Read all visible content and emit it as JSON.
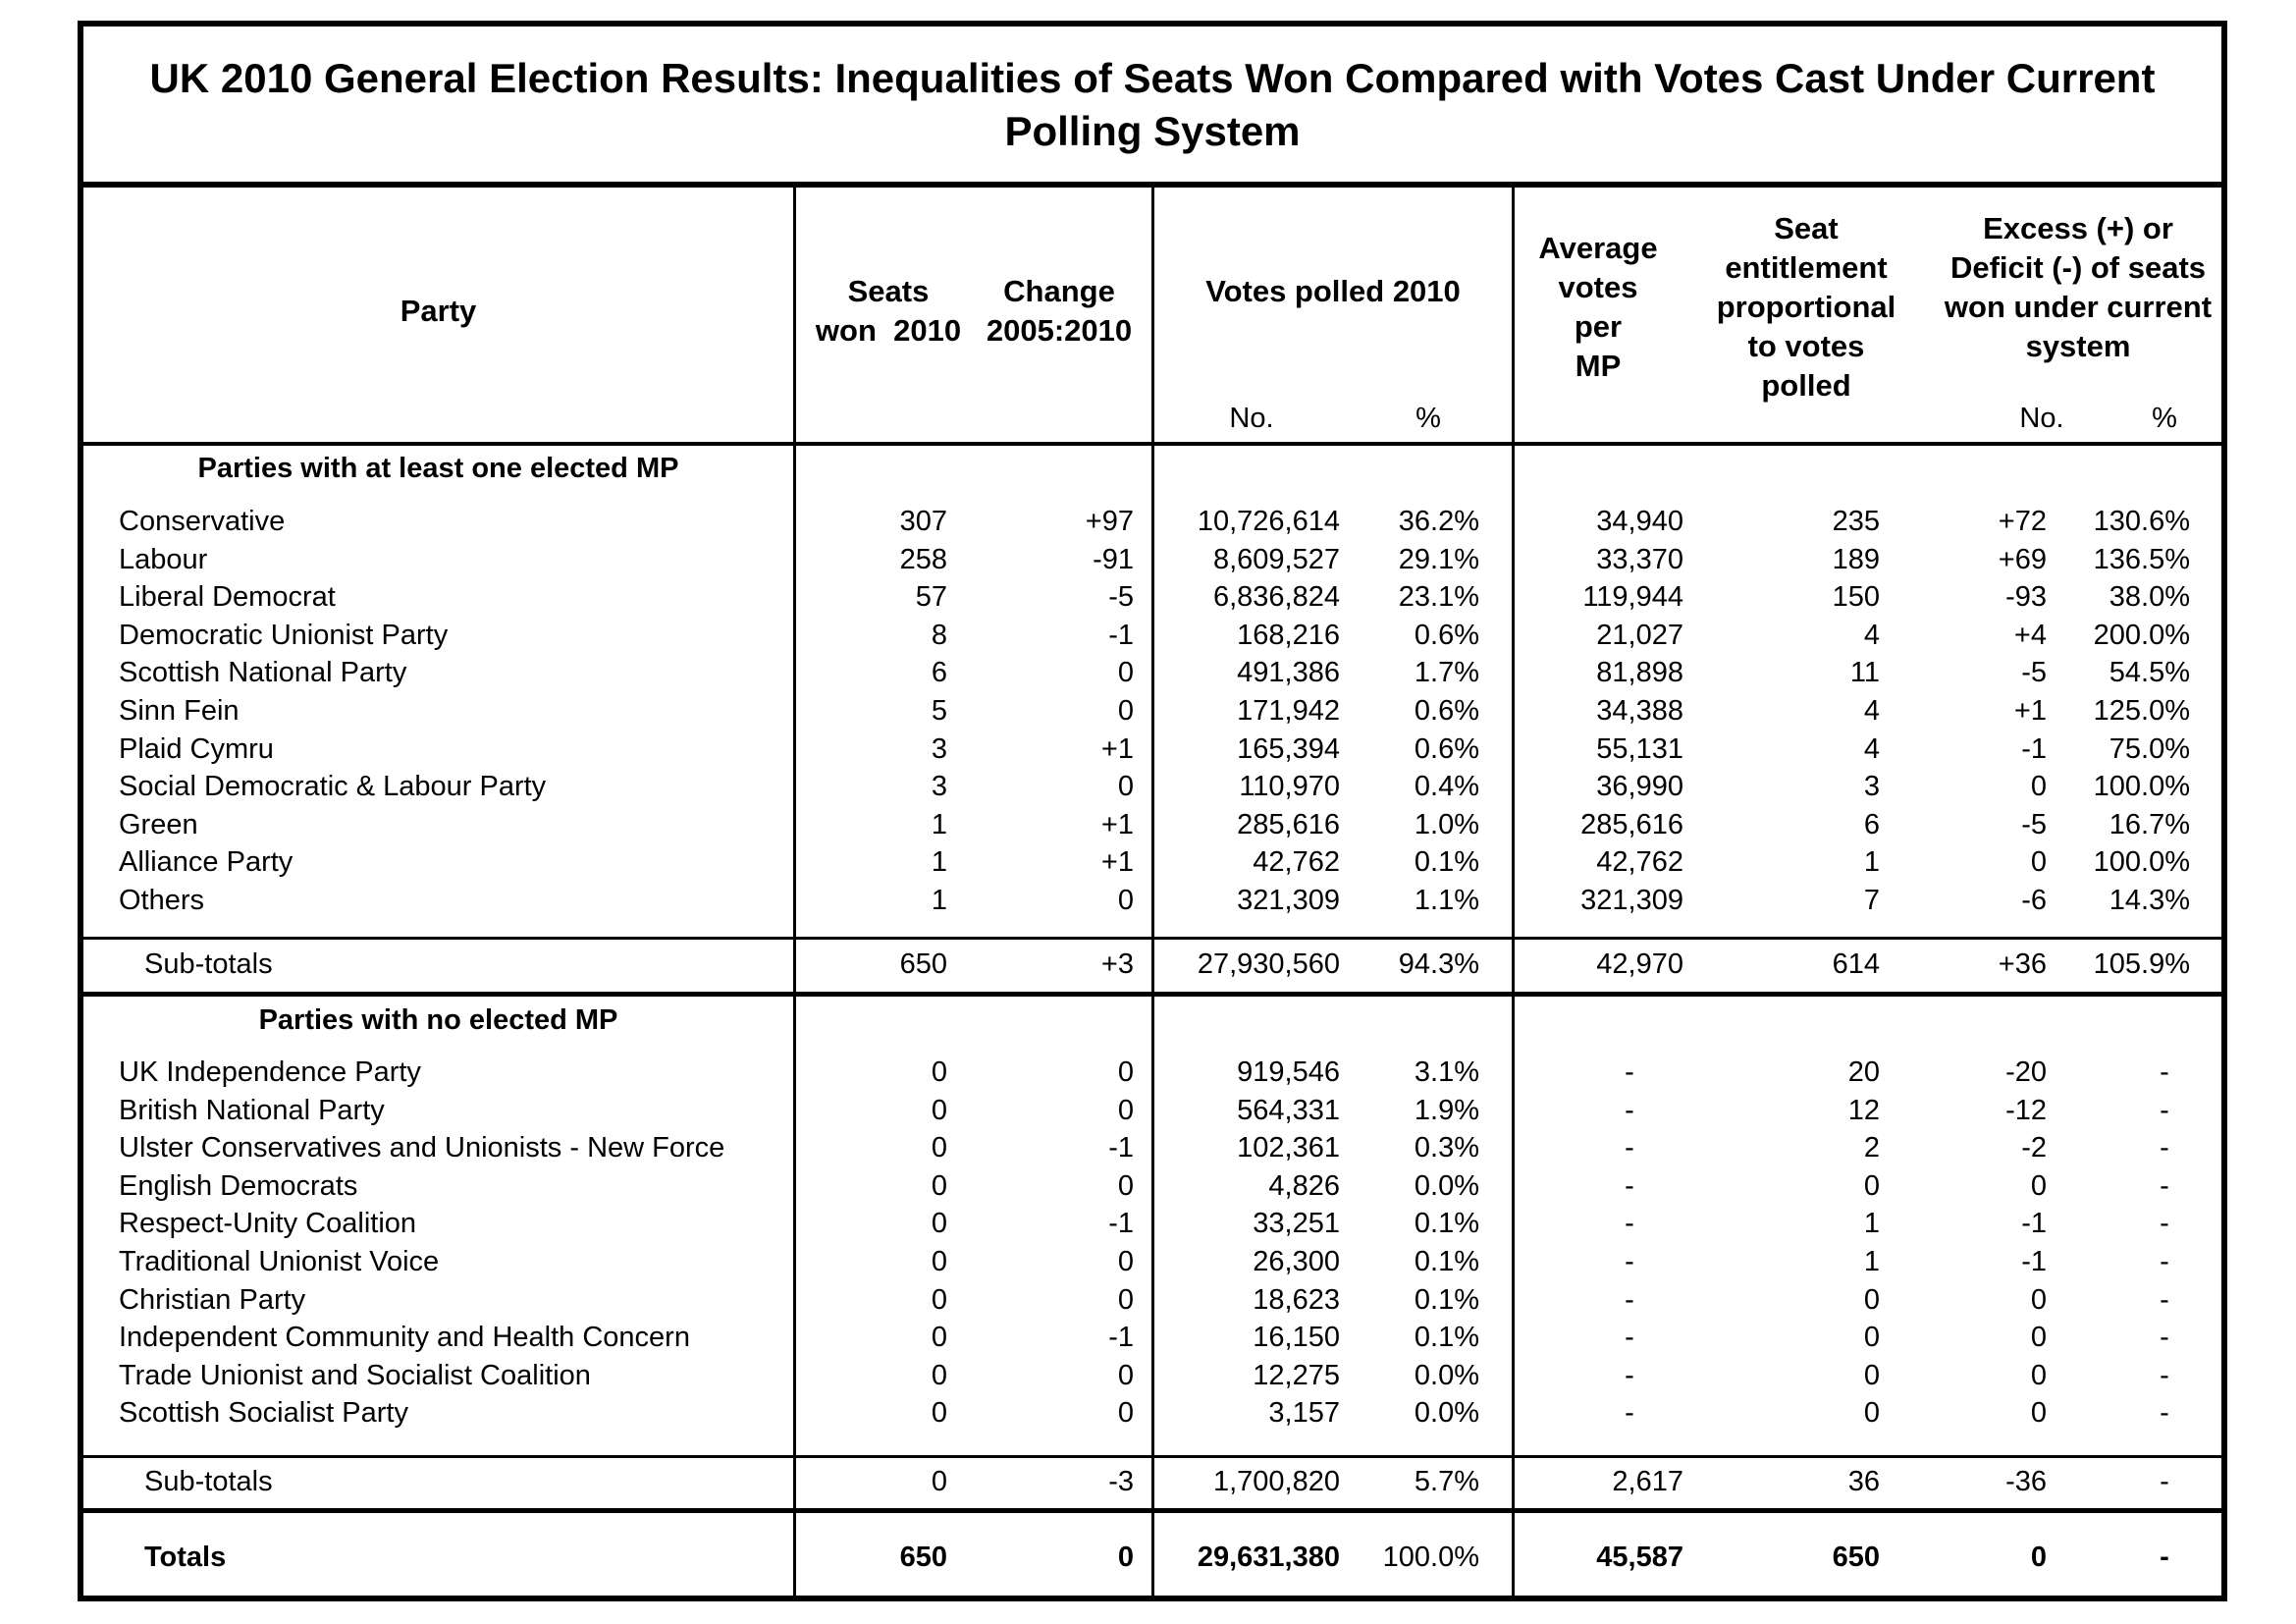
{
  "title": {
    "line1": "UK 2010 General Election Results: Inequalities of Seats Won Compared with Votes Cast Under Current",
    "line2": "Polling System"
  },
  "headers": {
    "party": "Party",
    "seats": [
      "Seats",
      "won  2010"
    ],
    "change": [
      "Change",
      "2005:2010"
    ],
    "votes": "Votes polled 2010",
    "votes_no": "No.",
    "votes_pct": "%",
    "avg": [
      "Average",
      "votes",
      "per",
      "MP"
    ],
    "entitlement": [
      "Seat",
      "entitlement",
      "proportional",
      "to votes",
      "polled"
    ],
    "excess": [
      "Excess (+) or",
      "Deficit (-) of seats",
      "won under current",
      "system"
    ],
    "excess_no": "No.",
    "excess_pct": "%"
  },
  "section1": {
    "label": "Parties with at least one elected MP",
    "rows": [
      {
        "party": "Conservative",
        "seats": "307",
        "change": "+97",
        "votes": "10,726,614",
        "pct": "36.2%",
        "avg": "34,940",
        "ent": "235",
        "exno": "+72",
        "expct": "130.6%"
      },
      {
        "party": "Labour",
        "seats": "258",
        "change": "-91",
        "votes": "8,609,527",
        "pct": "29.1%",
        "avg": "33,370",
        "ent": "189",
        "exno": "+69",
        "expct": "136.5%"
      },
      {
        "party": "Liberal Democrat",
        "seats": "57",
        "change": "-5",
        "votes": "6,836,824",
        "pct": "23.1%",
        "avg": "119,944",
        "ent": "150",
        "exno": "-93",
        "expct": "38.0%"
      },
      {
        "party": "Democratic Unionist Party",
        "seats": "8",
        "change": "-1",
        "votes": "168,216",
        "pct": "0.6%",
        "avg": "21,027",
        "ent": "4",
        "exno": "+4",
        "expct": "200.0%"
      },
      {
        "party": "Scottish National Party",
        "seats": "6",
        "change": "0",
        "votes": "491,386",
        "pct": "1.7%",
        "avg": "81,898",
        "ent": "11",
        "exno": "-5",
        "expct": "54.5%"
      },
      {
        "party": "Sinn Fein",
        "seats": "5",
        "change": "0",
        "votes": "171,942",
        "pct": "0.6%",
        "avg": "34,388",
        "ent": "4",
        "exno": "+1",
        "expct": "125.0%"
      },
      {
        "party": "Plaid Cymru",
        "seats": "3",
        "change": "+1",
        "votes": "165,394",
        "pct": "0.6%",
        "avg": "55,131",
        "ent": "4",
        "exno": "-1",
        "expct": "75.0%"
      },
      {
        "party": "Social Democratic & Labour Party",
        "seats": "3",
        "change": "0",
        "votes": "110,970",
        "pct": "0.4%",
        "avg": "36,990",
        "ent": "3",
        "exno": "0",
        "expct": "100.0%"
      },
      {
        "party": "Green",
        "seats": "1",
        "change": "+1",
        "votes": "285,616",
        "pct": "1.0%",
        "avg": "285,616",
        "ent": "6",
        "exno": "-5",
        "expct": "16.7%"
      },
      {
        "party": "Alliance Party",
        "seats": "1",
        "change": "+1",
        "votes": "42,762",
        "pct": "0.1%",
        "avg": "42,762",
        "ent": "1",
        "exno": "0",
        "expct": "100.0%"
      },
      {
        "party": "Others",
        "seats": "1",
        "change": "0",
        "votes": "321,309",
        "pct": "1.1%",
        "avg": "321,309",
        "ent": "7",
        "exno": "-6",
        "expct": "14.3%"
      }
    ],
    "subtotal": {
      "party": "Sub-totals",
      "seats": "650",
      "change": "+3",
      "votes": "27,930,560",
      "pct": "94.3%",
      "avg": "42,970",
      "ent": "614",
      "exno": "+36",
      "expct": "105.9%"
    }
  },
  "section2": {
    "label": "Parties with no elected MP",
    "rows": [
      {
        "party": "UK Independence Party",
        "seats": "0",
        "change": "0",
        "votes": "919,546",
        "pct": "3.1%",
        "avg": "-",
        "ent": "20",
        "exno": "-20",
        "expct": "-"
      },
      {
        "party": "British National Party",
        "seats": "0",
        "change": "0",
        "votes": "564,331",
        "pct": "1.9%",
        "avg": "-",
        "ent": "12",
        "exno": "-12",
        "expct": "-"
      },
      {
        "party": "Ulster Conservatives and Unionists - New Force",
        "seats": "0",
        "change": "-1",
        "votes": "102,361",
        "pct": "0.3%",
        "avg": "-",
        "ent": "2",
        "exno": "-2",
        "expct": "-"
      },
      {
        "party": "English Democrats",
        "seats": "0",
        "change": "0",
        "votes": "4,826",
        "pct": "0.0%",
        "avg": "-",
        "ent": "0",
        "exno": "0",
        "expct": "-"
      },
      {
        "party": "Respect-Unity Coalition",
        "seats": "0",
        "change": "-1",
        "votes": "33,251",
        "pct": "0.1%",
        "avg": "-",
        "ent": "1",
        "exno": "-1",
        "expct": "-"
      },
      {
        "party": "Traditional Unionist Voice",
        "seats": "0",
        "change": "0",
        "votes": "26,300",
        "pct": "0.1%",
        "avg": "-",
        "ent": "1",
        "exno": "-1",
        "expct": "-"
      },
      {
        "party": "Christian Party",
        "seats": "0",
        "change": "0",
        "votes": "18,623",
        "pct": "0.1%",
        "avg": "-",
        "ent": "0",
        "exno": "0",
        "expct": "-"
      },
      {
        "party": "Independent Community and Health Concern",
        "seats": "0",
        "change": "-1",
        "votes": "16,150",
        "pct": "0.1%",
        "avg": "-",
        "ent": "0",
        "exno": "0",
        "expct": "-"
      },
      {
        "party": "Trade Unionist and Socialist Coalition",
        "seats": "0",
        "change": "0",
        "votes": "12,275",
        "pct": "0.0%",
        "avg": "-",
        "ent": "0",
        "exno": "0",
        "expct": "-"
      },
      {
        "party": "Scottish Socialist Party",
        "seats": "0",
        "change": "0",
        "votes": "3,157",
        "pct": "0.0%",
        "avg": "-",
        "ent": "0",
        "exno": "0",
        "expct": "-"
      }
    ],
    "subtotal": {
      "party": "Sub-totals",
      "seats": "0",
      "change": "-3",
      "votes": "1,700,820",
      "pct": "5.7%",
      "avg": "2,617",
      "ent": "36",
      "exno": "-36",
      "expct": "-"
    }
  },
  "totals": {
    "party": "Totals",
    "seats": "650",
    "change": "0",
    "votes": "29,631,380",
    "pct": "100.0%",
    "avg": "45,587",
    "ent": "650",
    "exno": "0",
    "expct": "-"
  }
}
